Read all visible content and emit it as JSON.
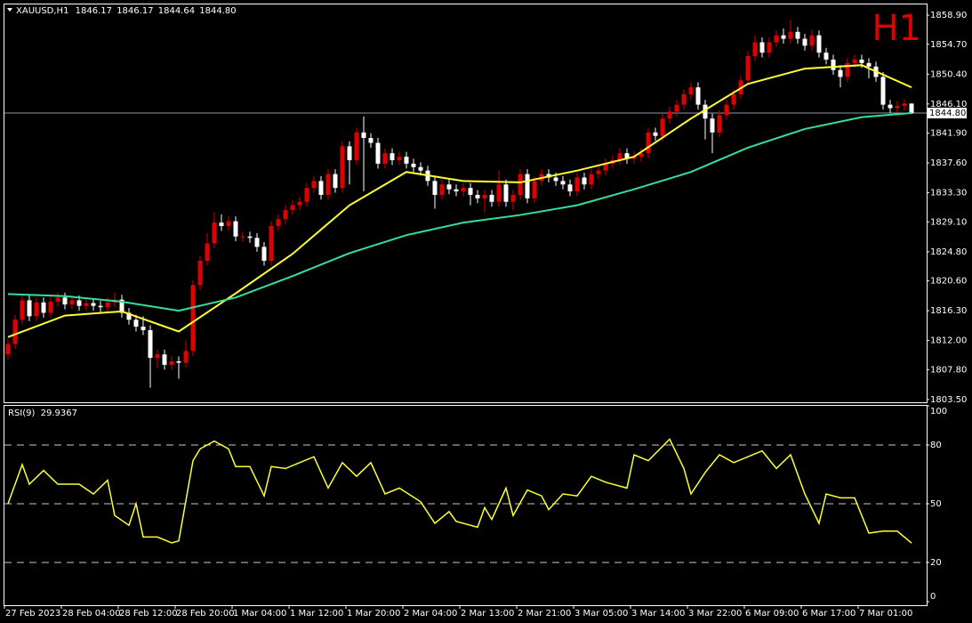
{
  "chart_data": {
    "type": "candlestick",
    "symbol": "XAUUSD,H1",
    "last_bar_labels": [
      "1846.17",
      "1846.17",
      "1844.64",
      "1844.80"
    ],
    "timeframe": "H1",
    "up_color": "#e00000",
    "down_color": "#ffffff",
    "categories": [
      "27 Feb 2023",
      null,
      null,
      null,
      null,
      null,
      null,
      null,
      "28 Feb 04:00",
      null,
      null,
      null,
      null,
      null,
      null,
      null,
      "28 Feb 12:00",
      null,
      null,
      null,
      null,
      null,
      null,
      null,
      "28 Feb 20:00",
      null,
      null,
      null,
      null,
      null,
      null,
      null,
      "1 Mar 04:00",
      null,
      null,
      null,
      null,
      null,
      null,
      null,
      "1 Mar 12:00",
      null,
      null,
      null,
      null,
      null,
      null,
      null,
      "1 Mar 20:00",
      null,
      null,
      null,
      null,
      null,
      null,
      null,
      "2 Mar 04:00",
      null,
      null,
      null,
      null,
      null,
      null,
      null,
      "2 Mar 13:00",
      null,
      null,
      null,
      null,
      null,
      null,
      null,
      "2 Mar 21:00",
      null,
      null,
      null,
      null,
      null,
      null,
      null,
      "3 Mar 05:00",
      null,
      null,
      null,
      null,
      null,
      null,
      null,
      "3 Mar 14:00",
      null,
      null,
      null,
      null,
      null,
      null,
      null,
      "3 Mar 22:00",
      null,
      null,
      null,
      null,
      null,
      null,
      null,
      "6 Mar 09:00",
      null,
      null,
      null,
      null,
      null,
      null,
      null,
      "6 Mar 17:00",
      null,
      null,
      null,
      null,
      null,
      null,
      null,
      "7 Mar 01:00",
      null,
      null,
      null,
      null,
      null,
      null,
      null
    ],
    "open": [
      1810.0,
      1811.5,
      1815.0,
      1817.8,
      1815.5,
      1817.5,
      1816.0,
      1817.6,
      1818.2,
      1817.2,
      1817.8,
      1817.0,
      1817.4,
      1817.0,
      1816.8,
      1817.5,
      1817.9,
      1816.0,
      1815.0,
      1814.0,
      1813.5,
      1809.5,
      1810.0,
      1808.5,
      1809.0,
      1808.8,
      1810.5,
      1820.0,
      1823.5,
      1826.0,
      1829.0,
      1828.5,
      1829.2,
      1827.0,
      1827.0,
      1826.8,
      1825.5,
      1823.5,
      1828.5,
      1829.5,
      1830.8,
      1831.5,
      1832.0,
      1834.0,
      1835.0,
      1833.0,
      1836.0,
      1834.0,
      1840.0,
      1838.0,
      1842.0,
      1841.2,
      1840.5,
      1837.5,
      1839.0,
      1838.0,
      1838.5,
      1837.5,
      1837.0,
      1836.5,
      1835.0,
      1833.0,
      1834.5,
      1833.8,
      1833.5,
      1834.0,
      1833.0,
      1832.5,
      1833.0,
      1832.0,
      1834.5,
      1832.0,
      1833.0,
      1836.0,
      1832.5,
      1835.0,
      1836.0,
      1835.5,
      1835.0,
      1834.5,
      1833.5,
      1835.5,
      1834.5,
      1836.0,
      1836.5,
      1837.5,
      1838.0,
      1839.0,
      1838.2,
      1838.5,
      1839.0,
      1842.0,
      1841.5,
      1844.0,
      1845.0,
      1846.0,
      1847.5,
      1848.5,
      1846.0,
      1844.0,
      1842.0,
      1844.5,
      1846.0,
      1847.5,
      1849.5,
      1853.0,
      1855.0,
      1853.5,
      1855.0,
      1856.0,
      1855.5,
      1856.5,
      1855.5,
      1854.5,
      1856.0,
      1853.5,
      1852.5,
      1851.0,
      1850.0,
      1852.0,
      1852.5,
      1852.0,
      1851.5,
      1850.0,
      1846.0,
      1845.5,
      1845.8,
      1846.17
    ],
    "high": [
      1812.2,
      1815.7,
      1818.5,
      1818.5,
      1818.2,
      1818.2,
      1818.3,
      1818.9,
      1818.9,
      1818.5,
      1818.5,
      1818.1,
      1818.1,
      1817.7,
      1818.2,
      1818.9,
      1818.6,
      1816.7,
      1815.7,
      1815.5,
      1814.2,
      1810.7,
      1810.7,
      1809.7,
      1809.7,
      1812.0,
      1820.7,
      1824.2,
      1827.5,
      1830.5,
      1830.2,
      1829.9,
      1829.9,
      1827.7,
      1827.7,
      1827.5,
      1826.2,
      1829.2,
      1830.2,
      1831.5,
      1832.2,
      1832.7,
      1834.7,
      1835.7,
      1835.7,
      1836.7,
      1836.7,
      1840.7,
      1840.7,
      1842.7,
      1844.3,
      1841.9,
      1841.2,
      1839.7,
      1839.7,
      1839.2,
      1839.2,
      1838.2,
      1837.7,
      1837.2,
      1835.7,
      1835.2,
      1835.2,
      1834.5,
      1834.7,
      1834.7,
      1833.7,
      1833.7,
      1833.7,
      1836.5,
      1835.2,
      1833.7,
      1836.7,
      1836.7,
      1835.7,
      1836.7,
      1836.7,
      1836.2,
      1835.7,
      1835.2,
      1836.2,
      1836.2,
      1836.7,
      1837.2,
      1838.2,
      1838.7,
      1839.7,
      1839.7,
      1839.2,
      1839.7,
      1842.7,
      1842.7,
      1844.7,
      1845.7,
      1846.7,
      1848.2,
      1849.2,
      1849.2,
      1846.7,
      1844.7,
      1845.2,
      1846.7,
      1848.2,
      1850.2,
      1853.7,
      1856.0,
      1855.7,
      1855.7,
      1856.7,
      1857.0,
      1858.2,
      1857.2,
      1856.2,
      1856.7,
      1856.7,
      1854.2,
      1853.2,
      1851.7,
      1852.7,
      1853.2,
      1853.2,
      1852.7,
      1852.2,
      1850.7,
      1846.7,
      1846.5,
      1846.8,
      1846.17
    ],
    "low": [
      1809.3,
      1810.8,
      1814.3,
      1814.8,
      1814.8,
      1815.3,
      1815.3,
      1816.9,
      1816.5,
      1816.5,
      1816.3,
      1816.3,
      1816.3,
      1816.1,
      1816.1,
      1816.8,
      1815.3,
      1814.3,
      1813.3,
      1812.8,
      1805.2,
      1808.0,
      1807.8,
      1807.8,
      1806.5,
      1808.1,
      1809.8,
      1819.3,
      1822.8,
      1825.3,
      1827.8,
      1827.8,
      1826.3,
      1826.3,
      1826.1,
      1824.8,
      1822.8,
      1822.8,
      1827.8,
      1828.8,
      1830.1,
      1830.8,
      1831.3,
      1833.3,
      1832.3,
      1832.3,
      1833.3,
      1833.3,
      1834.5,
      1837.3,
      1833.5,
      1839.8,
      1836.8,
      1836.8,
      1837.3,
      1837.3,
      1836.8,
      1836.3,
      1835.8,
      1834.3,
      1831.0,
      1832.3,
      1833.1,
      1832.8,
      1832.8,
      1831.5,
      1831.8,
      1830.5,
      1831.3,
      1831.3,
      1831.3,
      1830.8,
      1832.3,
      1831.8,
      1831.8,
      1834.3,
      1834.8,
      1834.3,
      1833.8,
      1832.8,
      1832.8,
      1833.8,
      1833.8,
      1835.3,
      1835.8,
      1836.8,
      1837.3,
      1837.5,
      1837.5,
      1837.8,
      1838.3,
      1840.8,
      1840.8,
      1843.3,
      1844.3,
      1845.3,
      1846.8,
      1845.3,
      1841.0,
      1839.0,
      1841.3,
      1843.8,
      1845.3,
      1846.8,
      1848.8,
      1852.3,
      1852.8,
      1852.8,
      1854.3,
      1854.8,
      1854.8,
      1854.8,
      1853.8,
      1853.8,
      1852.8,
      1851.8,
      1850.3,
      1848.5,
      1849.3,
      1851.3,
      1851.3,
      1849.8,
      1849.3,
      1845.3,
      1844.8,
      1844.9,
      1845.1,
      1844.64
    ],
    "close": [
      1811.5,
      1815.0,
      1817.8,
      1815.5,
      1817.5,
      1816.0,
      1817.6,
      1818.2,
      1817.2,
      1817.8,
      1817.0,
      1817.4,
      1817.0,
      1816.8,
      1817.5,
      1817.9,
      1816.0,
      1815.0,
      1814.0,
      1813.5,
      1809.5,
      1810.0,
      1808.5,
      1809.0,
      1808.8,
      1810.5,
      1820.0,
      1823.5,
      1826.0,
      1829.0,
      1828.5,
      1829.2,
      1827.0,
      1827.0,
      1826.8,
      1825.5,
      1823.5,
      1828.5,
      1829.5,
      1830.8,
      1831.5,
      1832.0,
      1834.0,
      1835.0,
      1833.0,
      1836.0,
      1834.0,
      1840.0,
      1838.0,
      1842.0,
      1841.2,
      1840.5,
      1837.5,
      1839.0,
      1838.0,
      1838.5,
      1837.5,
      1837.0,
      1836.5,
      1835.0,
      1833.0,
      1834.5,
      1833.8,
      1833.5,
      1834.0,
      1833.0,
      1832.5,
      1833.0,
      1832.0,
      1834.5,
      1832.0,
      1833.0,
      1836.0,
      1832.5,
      1835.0,
      1836.0,
      1835.5,
      1835.0,
      1834.5,
      1833.5,
      1835.5,
      1834.5,
      1836.0,
      1836.5,
      1837.5,
      1838.0,
      1839.0,
      1838.2,
      1838.5,
      1839.0,
      1842.0,
      1841.5,
      1844.0,
      1845.0,
      1846.0,
      1847.5,
      1848.5,
      1846.0,
      1844.0,
      1842.0,
      1844.5,
      1846.0,
      1847.5,
      1849.5,
      1853.0,
      1855.0,
      1853.5,
      1855.0,
      1856.0,
      1855.5,
      1856.5,
      1855.5,
      1854.5,
      1856.0,
      1853.5,
      1852.5,
      1851.0,
      1850.0,
      1852.0,
      1852.5,
      1852.0,
      1851.5,
      1850.0,
      1846.0,
      1845.5,
      1845.8,
      1846.17,
      1844.8
    ],
    "ylim": [
      1803.1,
      1860.45
    ],
    "yticks": [
      {
        "value": 1858.9,
        "label": "1858.90"
      },
      {
        "value": 1854.7,
        "label": "1854.70"
      },
      {
        "value": 1850.4,
        "label": "1850.40"
      },
      {
        "value": 1846.1,
        "label": "1846.10"
      },
      {
        "value": 1841.9,
        "label": "1841.90"
      },
      {
        "value": 1837.6,
        "label": "1837.60"
      },
      {
        "value": 1833.3,
        "label": "1833.30"
      },
      {
        "value": 1829.1,
        "label": "1829.10"
      },
      {
        "value": 1824.8,
        "label": "1824.80"
      },
      {
        "value": 1820.6,
        "label": "1820.60"
      },
      {
        "value": 1816.3,
        "label": "1816.30"
      },
      {
        "value": 1812.0,
        "label": "1812.00"
      },
      {
        "value": 1807.8,
        "label": "1807.80"
      },
      {
        "value": 1803.5,
        "label": "1803.50"
      }
    ],
    "current_price": {
      "value": 1844.8,
      "label": "1844.80"
    },
    "moving_averages": [
      {
        "color": "#ffff33",
        "x": [
          0,
          8,
          16,
          24,
          32,
          40,
          48,
          56,
          64,
          72,
          80,
          88,
          96,
          104,
          112,
          120,
          127
        ],
        "values": [
          1812.5,
          1815.6,
          1816.2,
          1813.3,
          1818.8,
          1824.5,
          1831.5,
          1836.3,
          1835.0,
          1834.8,
          1836.5,
          1838.5,
          1844.0,
          1849.0,
          1851.2,
          1851.7,
          1848.5
        ]
      },
      {
        "color": "#33e0a0",
        "x": [
          0,
          8,
          16,
          24,
          32,
          40,
          48,
          56,
          64,
          72,
          80,
          88,
          96,
          104,
          112,
          120,
          127
        ],
        "values": [
          1818.7,
          1818.4,
          1817.6,
          1816.3,
          1818.2,
          1821.3,
          1824.6,
          1827.2,
          1829.0,
          1830.1,
          1831.5,
          1833.8,
          1836.3,
          1839.8,
          1842.5,
          1844.2,
          1844.8
        ]
      }
    ],
    "rsi": {
      "name": "RSI(9)",
      "color": "#ffff33",
      "ylim": [
        0,
        100
      ],
      "yticks": [
        100,
        80,
        50,
        20,
        0
      ],
      "levels": [
        80,
        50,
        20
      ],
      "x": [
        0,
        2,
        3,
        5,
        7,
        10,
        12,
        14,
        15,
        17,
        18,
        19,
        21,
        23,
        24,
        26,
        27,
        29,
        31,
        32,
        34,
        36,
        37,
        39,
        41,
        43,
        45,
        47,
        49,
        51,
        53,
        55,
        58,
        60,
        62,
        63,
        66,
        67,
        68,
        70,
        71,
        73,
        75,
        76,
        78,
        80,
        82,
        84,
        87,
        88,
        90,
        93,
        95,
        96,
        98,
        100,
        102,
        106,
        108,
        110,
        112,
        114,
        115,
        117,
        119,
        121,
        123,
        125,
        127
      ],
      "values": [
        50,
        70,
        60,
        67,
        60,
        60,
        55,
        62,
        44,
        39,
        50,
        33,
        33,
        30,
        31,
        72,
        78,
        82,
        78,
        69,
        69,
        54,
        69,
        68,
        71,
        74,
        58,
        71,
        64,
        71,
        55,
        58,
        51,
        40,
        46,
        41,
        38,
        48,
        42,
        58,
        44,
        57,
        54,
        47,
        55,
        54,
        64,
        61,
        58,
        75,
        72,
        83,
        68,
        55,
        66,
        75,
        71,
        77,
        68,
        75,
        55,
        40,
        55,
        53,
        53,
        35,
        36,
        36,
        29.9367
      ]
    }
  }
}
